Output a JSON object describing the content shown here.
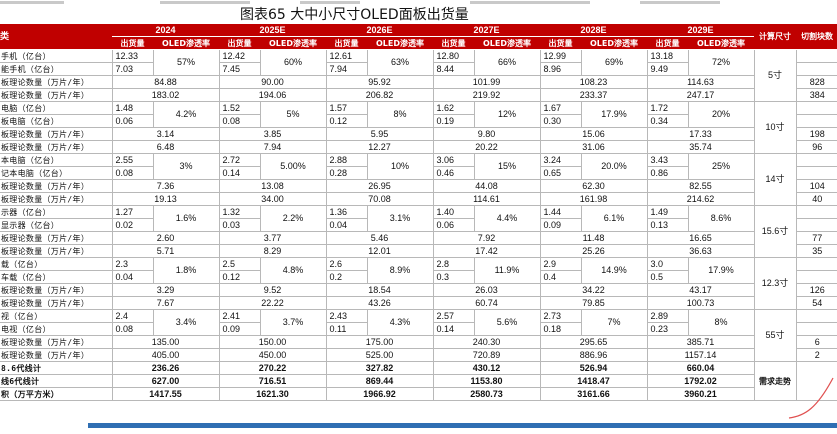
{
  "title": "图表65 大中小尺寸OLED面板出货量",
  "header": {
    "years": [
      "2024",
      "2025E",
      "2026E",
      "2027E",
      "2028E",
      "2029E"
    ],
    "first_col": "类",
    "ship": "出货量",
    "oled": "OLED渗透率",
    "calc_size": "计算尺寸",
    "cut": "切割块数"
  },
  "groups": [
    {
      "size": "5寸",
      "cut": [
        "828",
        "384"
      ],
      "ship_labels": [
        "手机（亿台）",
        "能手机（亿台）"
      ],
      "ship": [
        [
          "12.33",
          "7.03"
        ],
        [
          "12.42",
          "7.45"
        ],
        [
          "12.61",
          "7.94"
        ],
        [
          "12.80",
          "8.44"
        ],
        [
          "12.99",
          "8.96"
        ],
        [
          "13.18",
          "9.49"
        ]
      ],
      "rate": [
        "57%",
        "60%",
        "63%",
        "66%",
        "69%",
        "72%"
      ],
      "sub_labels": [
        "板理论数量（万片/年）",
        "板理论数量（万片/年）"
      ],
      "sub": [
        [
          "84.88",
          "183.02"
        ],
        [
          "90.00",
          "194.06"
        ],
        [
          "95.92",
          "206.82"
        ],
        [
          "101.99",
          "219.92"
        ],
        [
          "108.23",
          "233.37"
        ],
        [
          "114.63",
          "247.17"
        ]
      ]
    },
    {
      "size": "10寸",
      "cut": [
        "198",
        "96"
      ],
      "ship_labels": [
        "电脑（亿台）",
        "板电脑（亿台）"
      ],
      "ship": [
        [
          "1.48",
          "0.06"
        ],
        [
          "1.52",
          "0.08"
        ],
        [
          "1.57",
          "0.12"
        ],
        [
          "1.62",
          "0.19"
        ],
        [
          "1.67",
          "0.30"
        ],
        [
          "1.72",
          "0.34"
        ]
      ],
      "rate": [
        "4.2%",
        "5%",
        "8%",
        "12%",
        "17.9%",
        "20%"
      ],
      "sub_labels": [
        "板理论数量（万片/年）",
        "板理论数量（万片/年）"
      ],
      "sub": [
        [
          "3.14",
          "6.48"
        ],
        [
          "3.85",
          "7.94"
        ],
        [
          "5.95",
          "12.27"
        ],
        [
          "9.80",
          "20.22"
        ],
        [
          "15.06",
          "31.06"
        ],
        [
          "17.33",
          "35.74"
        ]
      ]
    },
    {
      "size": "14寸",
      "cut": [
        "104",
        "40"
      ],
      "ship_labels": [
        "本电脑（亿台）",
        "记本电脑（亿台）"
      ],
      "ship": [
        [
          "2.55",
          "0.08"
        ],
        [
          "2.72",
          "0.14"
        ],
        [
          "2.88",
          "0.28"
        ],
        [
          "3.06",
          "0.46"
        ],
        [
          "3.24",
          "0.65"
        ],
        [
          "3.43",
          "0.86"
        ]
      ],
      "rate": [
        "3%",
        "5.00%",
        "10%",
        "15%",
        "20.0%",
        "25%"
      ],
      "sub_labels": [
        "板理论数量（万片/年）",
        "板理论数量（万片/年）"
      ],
      "sub": [
        [
          "7.36",
          "19.13"
        ],
        [
          "13.08",
          "34.00"
        ],
        [
          "26.95",
          "70.08"
        ],
        [
          "44.08",
          "114.61"
        ],
        [
          "62.30",
          "161.98"
        ],
        [
          "82.55",
          "214.62"
        ]
      ]
    },
    {
      "size": "15.6寸",
      "cut": [
        "77",
        "35"
      ],
      "ship_labels": [
        "示器（亿台）",
        "显示器（亿台）"
      ],
      "ship": [
        [
          "1.27",
          "0.02"
        ],
        [
          "1.32",
          "0.03"
        ],
        [
          "1.36",
          "0.04"
        ],
        [
          "1.40",
          "0.06"
        ],
        [
          "1.44",
          "0.09"
        ],
        [
          "1.49",
          "0.13"
        ]
      ],
      "rate": [
        "1.6%",
        "2.2%",
        "3.1%",
        "4.4%",
        "6.1%",
        "8.6%"
      ],
      "sub_labels": [
        "板理论数量（万片/年）",
        "板理论数量（万片/年）"
      ],
      "sub": [
        [
          "2.60",
          "5.71"
        ],
        [
          "3.77",
          "8.29"
        ],
        [
          "5.46",
          "12.01"
        ],
        [
          "7.92",
          "17.42"
        ],
        [
          "11.48",
          "25.26"
        ],
        [
          "16.65",
          "36.63"
        ]
      ]
    },
    {
      "size": "12.3寸",
      "cut": [
        "126",
        "54"
      ],
      "ship_labels": [
        "载（亿台）",
        "车载（亿台）"
      ],
      "ship": [
        [
          "2.3",
          "0.04"
        ],
        [
          "2.5",
          "0.12"
        ],
        [
          "2.6",
          "0.2"
        ],
        [
          "2.8",
          "0.3"
        ],
        [
          "2.9",
          "0.4"
        ],
        [
          "3.0",
          "0.5"
        ]
      ],
      "rate": [
        "1.8%",
        "4.8%",
        "8.9%",
        "11.9%",
        "14.9%",
        "17.9%"
      ],
      "sub_labels": [
        "板理论数量（万片/年）",
        "板理论数量（万片/年）"
      ],
      "sub": [
        [
          "3.29",
          "7.67"
        ],
        [
          "9.52",
          "22.22"
        ],
        [
          "18.54",
          "43.26"
        ],
        [
          "26.03",
          "60.74"
        ],
        [
          "34.22",
          "79.85"
        ],
        [
          "43.17",
          "100.73"
        ]
      ]
    },
    {
      "size": "55寸",
      "cut": [
        "6",
        "2"
      ],
      "ship_labels": [
        "视（亿台）",
        "电视（亿台）"
      ],
      "ship": [
        [
          "2.4",
          "0.08"
        ],
        [
          "2.41",
          "0.09"
        ],
        [
          "2.43",
          "0.11"
        ],
        [
          "2.57",
          "0.14"
        ],
        [
          "2.73",
          "0.18"
        ],
        [
          "2.89",
          "0.23"
        ]
      ],
      "rate": [
        "3.4%",
        "3.7%",
        "4.3%",
        "5.6%",
        "7%",
        "8%"
      ],
      "sub_labels": [
        "板理论数量（万片/年）",
        "板理论数量（万片/年）"
      ],
      "sub": [
        [
          "135.00",
          "405.00"
        ],
        [
          "150.00",
          "450.00"
        ],
        [
          "175.00",
          "525.00"
        ],
        [
          "240.30",
          "720.89"
        ],
        [
          "295.65",
          "886.96"
        ],
        [
          "385.71",
          "1157.14"
        ]
      ]
    }
  ],
  "totals": [
    {
      "label": "8.6代线计",
      "values": [
        "236.26",
        "270.22",
        "327.82",
        "430.12",
        "526.94",
        "660.04"
      ]
    },
    {
      "label": "线6代线计",
      "values": [
        "627.00",
        "716.51",
        "869.44",
        "1153.80",
        "1418.47",
        "1792.02"
      ]
    },
    {
      "label": "积（万平方米）",
      "values": [
        "1417.55",
        "1621.30",
        "1966.92",
        "2580.73",
        "3161.66",
        "3960.21"
      ]
    }
  ],
  "demand_trend": "需求走势"
}
